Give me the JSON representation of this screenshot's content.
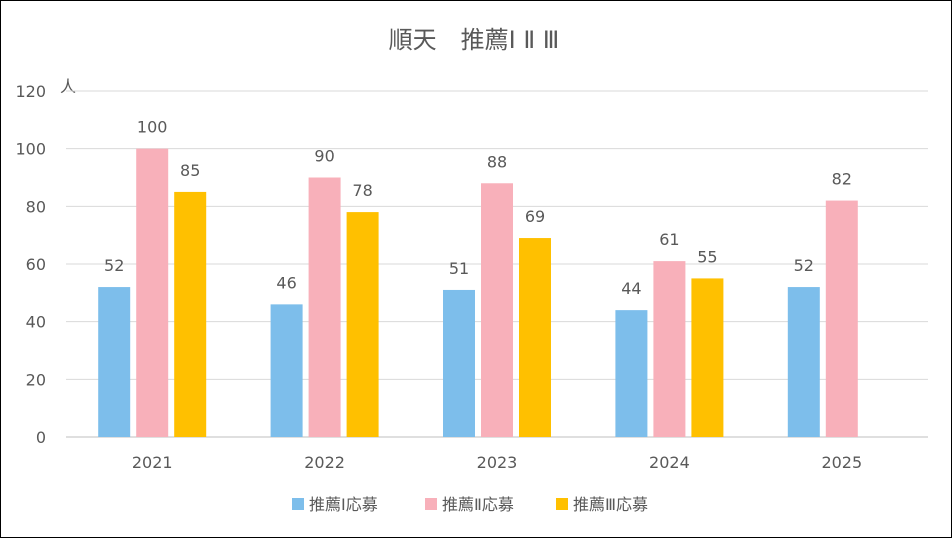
{
  "chart_data": {
    "type": "bar",
    "title": "順天　推薦Ⅰ Ⅱ Ⅲ",
    "y_unit": "人",
    "xlabel": "",
    "ylabel": "",
    "categories": [
      "2021",
      "2022",
      "2023",
      "2024",
      "2025"
    ],
    "ylim": [
      0,
      120
    ],
    "yticks": [
      0,
      20,
      40,
      60,
      80,
      100,
      120
    ],
    "grid": true,
    "legend_position": "bottom",
    "series": [
      {
        "name": "推薦Ⅰ応募",
        "color": "#7DBEEB",
        "values": [
          52,
          46,
          51,
          44,
          52
        ]
      },
      {
        "name": "推薦Ⅱ応募",
        "color": "#F8B0BA",
        "values": [
          100,
          90,
          88,
          61,
          82
        ]
      },
      {
        "name": "推薦Ⅲ応募",
        "color": "#FFC000",
        "values": [
          85,
          78,
          69,
          55,
          null
        ]
      }
    ]
  }
}
